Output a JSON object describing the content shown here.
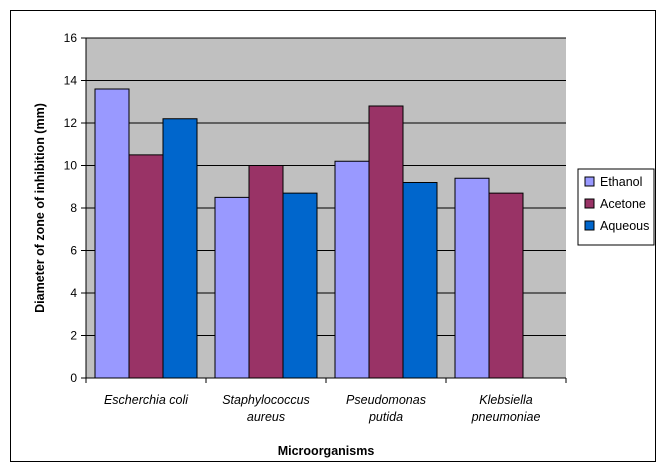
{
  "chart_data": {
    "type": "bar",
    "categories": [
      [
        "Escherchia coli"
      ],
      [
        "Staphylococcus",
        "aureus"
      ],
      [
        "Pseudomonas",
        "putida"
      ],
      [
        "Klebsiella",
        "pneumoniae"
      ]
    ],
    "series": [
      {
        "name": "Ethanol",
        "color": "#9999FF",
        "values": [
          13.6,
          8.5,
          10.2,
          9.4
        ]
      },
      {
        "name": "Acetone",
        "color": "#993366",
        "values": [
          10.5,
          10.0,
          12.8,
          8.7
        ]
      },
      {
        "name": "Aqueous",
        "color": "#0066CC",
        "values": [
          12.2,
          8.7,
          9.2,
          null
        ]
      }
    ],
    "xlabel": "Microorganisms",
    "ylabel": "Diameter of zone of inhibition (mm)",
    "ylim": [
      0,
      16
    ],
    "yticks": [
      0,
      2,
      4,
      6,
      8,
      10,
      12,
      14,
      16
    ],
    "grid": true,
    "legend_position": "right",
    "plot_background": "#C0C0C0",
    "gridline_color": "#000000"
  }
}
